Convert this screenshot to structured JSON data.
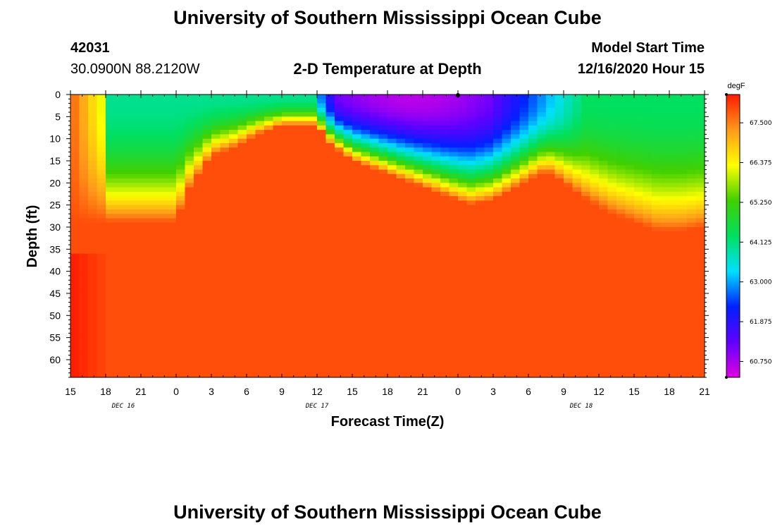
{
  "header": {
    "title_top": "University of Southern Mississippi Ocean Cube",
    "station_id": "42031",
    "coords": "30.0900N 88.2120W",
    "plot_title": "2-D Temperature at Depth",
    "model_label": "Model Start Time",
    "model_time": "12/16/2020 Hour 15"
  },
  "footer": {
    "title_bottom": "University of Southern Mississippi Ocean Cube"
  },
  "colors": {
    "stops": [
      "#e000e0",
      "#6000ff",
      "#0020ff",
      "#00e0ff",
      "#00e060",
      "#40d000",
      "#ffff00",
      "#ff9a1a",
      "#ff1a00"
    ]
  },
  "chart_data": {
    "type": "heatmap",
    "title": "2-D Temperature at Depth",
    "xlabel": "Forecast Time(Z)",
    "ylabel": "Depth (ft)",
    "x_ticks": [
      "15",
      "18",
      "21",
      "0",
      "3",
      "6",
      "9",
      "12",
      "15",
      "18",
      "21",
      "0",
      "3",
      "6",
      "9",
      "12",
      "15",
      "18",
      "21"
    ],
    "x_range_hours": [
      0,
      54
    ],
    "day_labels": [
      {
        "label": "DEC 16",
        "hour": 4.5
      },
      {
        "label": "DEC 17",
        "hour": 21
      },
      {
        "label": "DEC 18",
        "hour": 43.5
      }
    ],
    "y_ticks": [
      "0",
      "5",
      "10",
      "15",
      "20",
      "25",
      "30",
      "35",
      "40",
      "45",
      "50",
      "55",
      "60"
    ],
    "ylim": [
      0,
      64
    ],
    "colorbar": {
      "unit": "degF",
      "min": 60.3,
      "max": 68.3,
      "tick_labels": [
        "67.500",
        "66.375",
        "65.250",
        "64.125",
        "63.000",
        "61.875",
        "60.750"
      ],
      "tick_values": [
        67.5,
        66.375,
        65.25,
        64.125,
        63.0,
        61.875,
        60.75
      ]
    },
    "thermocline": {
      "hours": [
        0,
        3,
        5,
        7,
        9,
        10,
        12,
        14,
        16,
        18,
        20,
        20.5,
        21,
        21.5,
        22,
        23,
        24,
        26,
        28,
        30,
        32,
        34,
        36,
        38,
        40,
        41,
        42,
        43,
        44,
        46,
        48,
        50,
        52,
        54
      ],
      "depth_ft": [
        29,
        29,
        29,
        29,
        29,
        22,
        14,
        12,
        9,
        7,
        7,
        7,
        7,
        9,
        11,
        13,
        15,
        17,
        19,
        21,
        23,
        25,
        24,
        21,
        18,
        18,
        20,
        22,
        24,
        27,
        29,
        31,
        31,
        30
      ]
    },
    "warm_core_degF": 67.9,
    "red_bottom_left_degF": 68.3,
    "cold_surface_region": {
      "hours": [
        21,
        44
      ],
      "min_degF": 60.5,
      "core_hours": [
        24,
        36
      ]
    }
  }
}
